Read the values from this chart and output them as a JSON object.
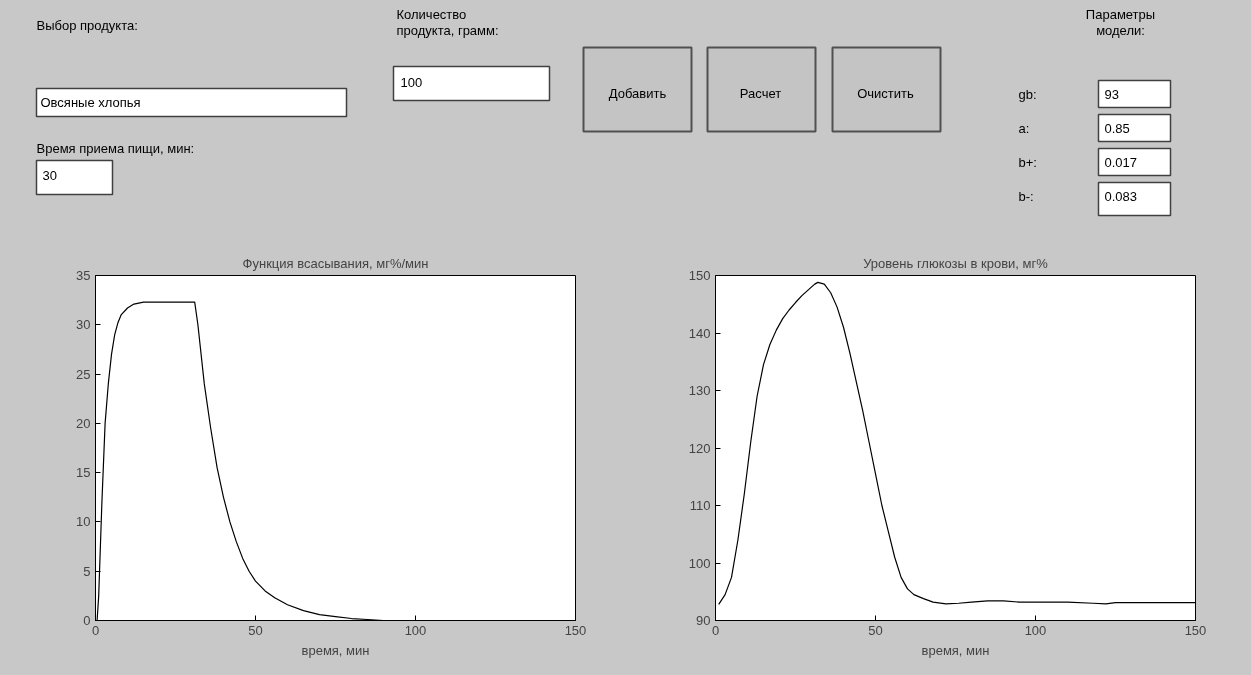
{
  "chart_data": [
    {
      "type": "other",
      "annotations": [
        "Выбор продукта:",
        "Овсяные хлопья",
        "Время приема пищи, мин:",
        "30",
        "Количество\nпродукта, грамм:",
        "100",
        "Добавить",
        "Расчет",
        "Очистить",
        "Параметры\nмодели:",
        "gb:",
        "93",
        "a:",
        "0.85",
        "b+:",
        "0.017",
        "b-:",
        "0.083"
      ]
    },
    {
      "type": "line",
      "title": "Функция всасывания, мг%/мин",
      "xlabel": "время, мин",
      "xlim": [
        0,
        150
      ],
      "ylim": [
        0,
        35
      ],
      "xticks": [
        0,
        50,
        100,
        150
      ],
      "yticks": [
        0,
        5,
        10,
        15,
        20,
        25,
        30,
        35
      ],
      "grid": false,
      "x": [
        0,
        0.5,
        1,
        2,
        3,
        4,
        5,
        6,
        7,
        8,
        10,
        12,
        15,
        20,
        25,
        31,
        32,
        34,
        36,
        38,
        40,
        42,
        44,
        46,
        48,
        50,
        53,
        56,
        60,
        65,
        70,
        75,
        80,
        85,
        90,
        100,
        150
      ],
      "series": [
        {
          "color": "#000000",
          "values": [
            0,
            0,
            2.5,
            12,
            20,
            24,
            27,
            29,
            30.2,
            31,
            31.7,
            32.1,
            32.3,
            32.3,
            32.3,
            32.3,
            30,
            24,
            19.5,
            15.5,
            12.5,
            10,
            8,
            6.3,
            5,
            4,
            3,
            2.3,
            1.6,
            1,
            0.6,
            0.4,
            0.2,
            0.1,
            0,
            0,
            0
          ]
        }
      ]
    },
    {
      "type": "line",
      "title": "Уровень глюкозы в крови, мг%",
      "xlabel": "время, мин",
      "xlim": [
        0,
        150
      ],
      "ylim": [
        90,
        150
      ],
      "xticks": [
        0,
        50,
        100,
        150
      ],
      "yticks": [
        90,
        100,
        110,
        120,
        130,
        140,
        150
      ],
      "grid": false,
      "x": [
        1,
        3,
        5,
        7,
        9,
        11,
        13,
        15,
        17,
        19,
        21,
        23,
        25,
        27,
        29,
        31,
        32,
        34,
        36,
        38,
        40,
        42,
        44,
        46,
        48,
        50,
        52,
        54,
        56,
        58,
        60,
        62,
        65,
        68,
        72,
        76,
        80,
        85,
        90,
        95,
        100,
        110,
        118,
        122,
        125,
        150
      ],
      "series": [
        {
          "color": "#000000",
          "values": [
            92.8,
            94.5,
            97.5,
            104,
            112,
            121,
            129,
            134.5,
            138,
            140.5,
            142.5,
            144,
            145.3,
            146.5,
            147.5,
            148.5,
            148.8,
            148.5,
            147,
            144.5,
            141,
            136.5,
            131.5,
            126.5,
            121,
            115.5,
            110,
            105.5,
            101,
            97.5,
            95.5,
            94.5,
            93.8,
            93.2,
            92.9,
            93,
            93.2,
            93.4,
            93.4,
            93.2,
            93.2,
            93.2,
            93,
            92.9,
            93.1,
            93.1
          ]
        }
      ]
    }
  ]
}
